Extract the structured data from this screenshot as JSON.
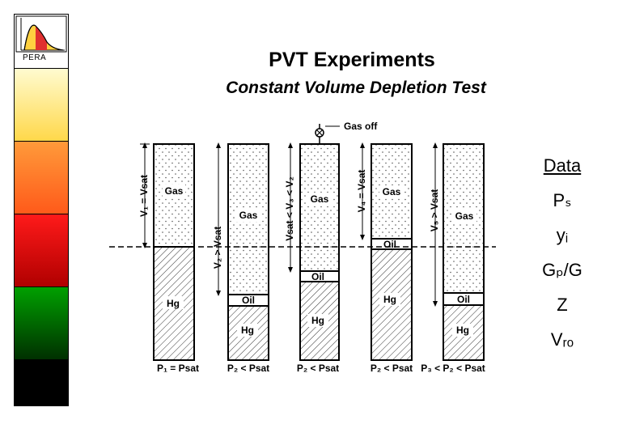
{
  "logo": {
    "text": "PERA"
  },
  "header": {
    "title": "PVT Experiments",
    "subtitle": "Constant Volume Depletion Test"
  },
  "diagram": {
    "gas_off": "Gas off",
    "dim": {
      "v1": "V₁ = Vsat",
      "v2": "V₂ > Vsat",
      "v3": "Vsat < V₃ < V₂",
      "v4": "V₄ = Vsat",
      "v5": "V₅ > Vsat"
    },
    "cells": [
      {
        "gas": "Gas",
        "oil": "",
        "hg": "Hg",
        "pressure": "P₁ = Psat"
      },
      {
        "gas": "Gas",
        "oil": "Oil",
        "hg": "Hg",
        "pressure": "P₂ < Psat"
      },
      {
        "gas": "Gas",
        "oil": "Oil",
        "hg": "Hg",
        "pressure": "P₂ < Psat"
      },
      {
        "gas": "Gas",
        "oil": "Oil",
        "hg": "Hg",
        "pressure": "P₂ < Psat"
      },
      {
        "gas": "Gas",
        "oil": "Oil",
        "hg": "Hg",
        "pressure": "P₃ < P₂ < Psat"
      }
    ]
  },
  "data_panel": {
    "title": "Data",
    "items": [
      "Pₛ",
      "yᵢ",
      "Gₚ/G",
      "Z",
      "Vᵣₒ"
    ]
  },
  "colors": {
    "sidebar": [
      "#fffdb0",
      "#ff8a2a",
      "#e00000",
      "#00a000",
      "#000000"
    ]
  }
}
